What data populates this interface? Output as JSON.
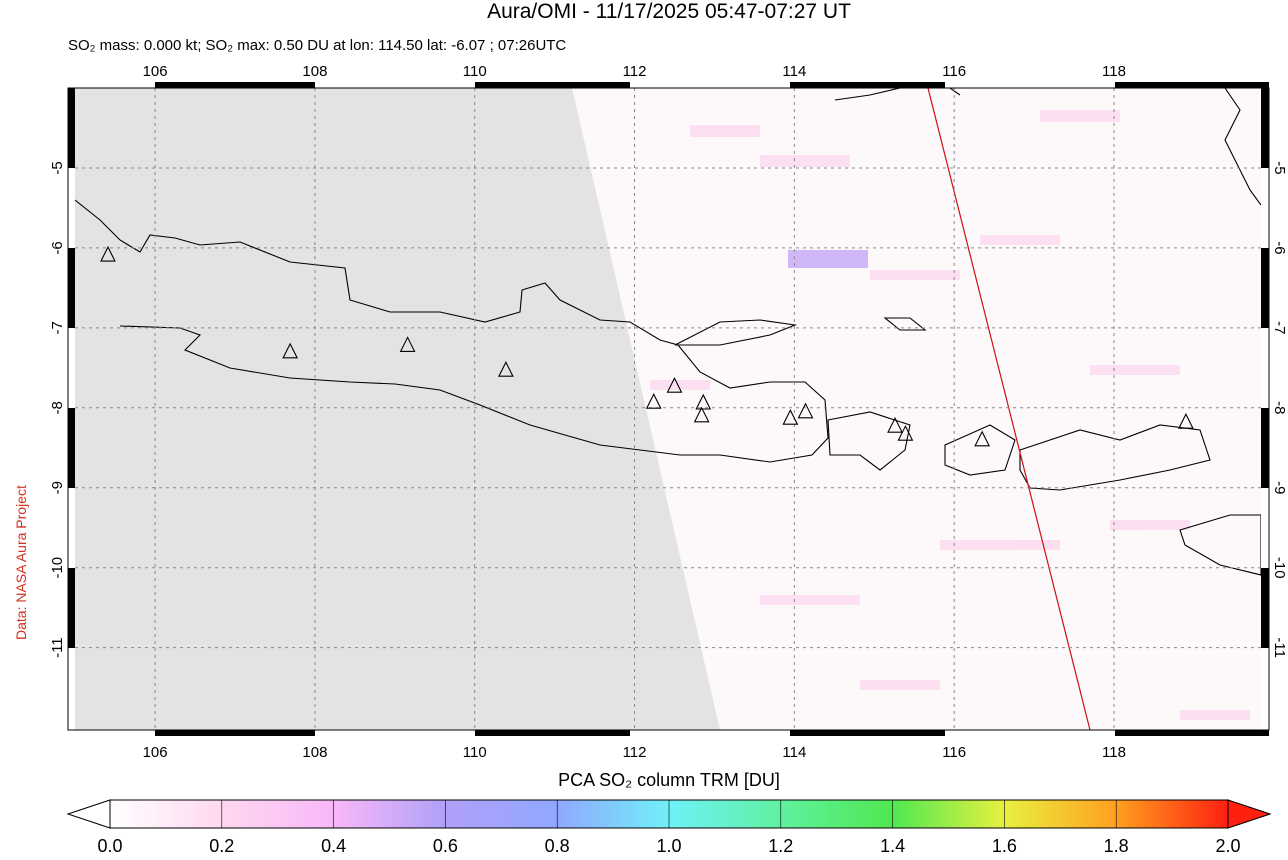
{
  "map": {
    "title": "Aura/OMI - 11/17/2025 05:47-07:27 UT",
    "subtitle": "SO₂ mass: 0.000 kt; SO₂ max: 0.50 DU at lon: 114.50 lat: -6.07 ; 07:26UTC",
    "xlim": [
      104.91,
      119.94
    ],
    "ylim": [
      -12.03,
      -4
    ],
    "lon_ticks": [
      106,
      108,
      110,
      112,
      114,
      116,
      118
    ],
    "lat_ticks": [
      -5,
      -6,
      -7,
      -8,
      -9,
      -10,
      -11
    ],
    "volcanoes": {
      "lon": [
        105.41,
        107.69,
        109.16,
        110.39,
        112.24,
        112.5,
        112.86,
        112.84,
        113.95,
        114.14,
        115.26,
        115.39,
        116.35,
        118.9
      ],
      "lat": [
        -6.09,
        -7.3,
        -7.22,
        -7.53,
        -7.93,
        -7.73,
        -7.94,
        -8.1,
        -8.13,
        -8.05,
        -8.23,
        -8.33,
        -8.4,
        -8.18
      ]
    }
  },
  "colorbar": {
    "label": "PCA SO₂ column TRM [DU]",
    "range": [
      0,
      2
    ],
    "ticks": [
      {
        "value": 0,
        "label": "0.0"
      },
      {
        "value": 0.2,
        "label": "0.2"
      },
      {
        "value": 0.4,
        "label": "0.4"
      },
      {
        "value": 0.6,
        "label": "0.6"
      },
      {
        "value": 0.8,
        "label": "0.8"
      },
      {
        "value": 1,
        "label": "1.0"
      },
      {
        "value": 1.2,
        "label": "1.2"
      },
      {
        "value": 1.4,
        "label": "1.4"
      },
      {
        "value": 1.6,
        "label": "1.6"
      },
      {
        "value": 1.8,
        "label": "1.8"
      },
      {
        "value": 2,
        "label": "2.0"
      }
    ]
  },
  "credit": "Data: NASA Aura Project"
}
